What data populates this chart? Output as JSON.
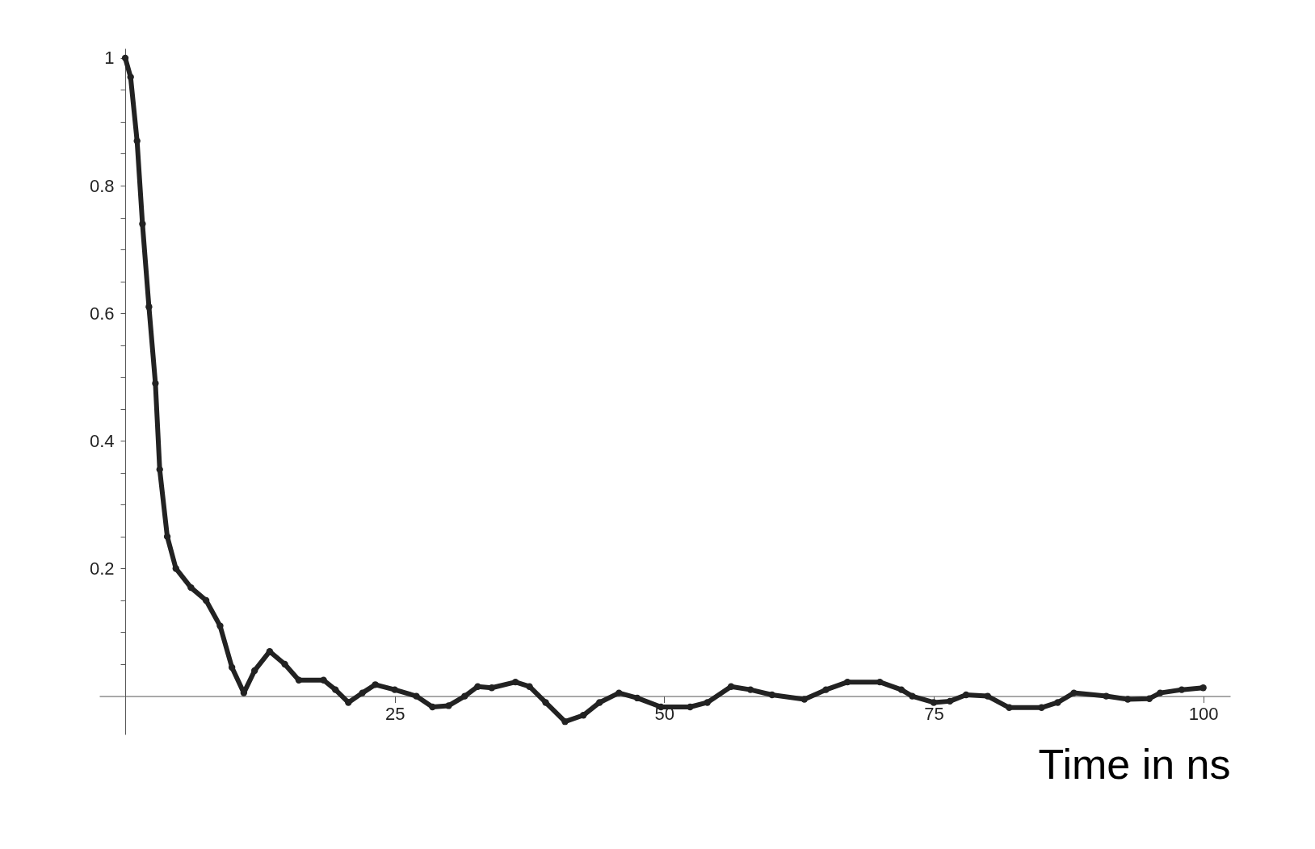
{
  "chart_data": {
    "type": "line",
    "marker": "circle",
    "xlabel": "Time in ns",
    "x": [
      0,
      0.5,
      1.1,
      1.6,
      2.2,
      2.8,
      3.2,
      3.9,
      4.7,
      6.1,
      7.5,
      8.8,
      9.9,
      11,
      12,
      13.4,
      14.8,
      16.1,
      18.4,
      19.5,
      20.7,
      22,
      23.2,
      25,
      27,
      28.5,
      30,
      31.5,
      32.7,
      34,
      36.2,
      37.5,
      39,
      40.8,
      42.5,
      44,
      45.8,
      47.5,
      49.7,
      52.4,
      54,
      56.2,
      58,
      60,
      63,
      65,
      67,
      70,
      72,
      73,
      75,
      76.5,
      78,
      80,
      82,
      85,
      86.5,
      88,
      91,
      93,
      95,
      96,
      98,
      100
    ],
    "series": [
      {
        "color": "#222222",
        "values": [
          1.0,
          0.97,
          0.87,
          0.74,
          0.61,
          0.49,
          0.355,
          0.25,
          0.2,
          0.17,
          0.15,
          0.11,
          0.045,
          0.005,
          0.04,
          0.07,
          0.05,
          0.025,
          0.025,
          0.01,
          -0.01,
          0.005,
          0.018,
          0.01,
          0.0,
          -0.017,
          -0.015,
          0.0,
          0.015,
          0.013,
          0.022,
          0.015,
          -0.01,
          -0.04,
          -0.03,
          -0.01,
          0.005,
          -0.003,
          -0.017,
          -0.017,
          -0.01,
          0.015,
          0.01,
          0.002,
          -0.005,
          0.01,
          0.022,
          0.022,
          0.01,
          0.0,
          -0.01,
          -0.008,
          0.002,
          0.0,
          -0.018,
          -0.018,
          -0.01,
          0.005,
          0.0,
          -0.005,
          -0.004,
          0.005,
          0.01,
          0.013
        ]
      }
    ],
    "xlim": [
      -2.4,
      102.5
    ],
    "ylim": [
      -0.06,
      1.015
    ],
    "xticks": [
      25,
      50,
      75,
      100
    ],
    "yticks": [
      {
        "value": 0.05,
        "label": null
      },
      {
        "value": 0.1,
        "label": null
      },
      {
        "value": 0.15,
        "label": null
      },
      0.2,
      {
        "value": 0.25,
        "label": null
      },
      {
        "value": 0.3,
        "label": null
      },
      {
        "value": 0.35,
        "label": null
      },
      0.4,
      {
        "value": 0.45,
        "label": null
      },
      {
        "value": 0.5,
        "label": null
      },
      {
        "value": 0.55,
        "label": null
      },
      0.6,
      {
        "value": 0.65,
        "label": null
      },
      {
        "value": 0.7,
        "label": null
      },
      {
        "value": 0.75,
        "label": null
      },
      0.8,
      {
        "value": 0.85,
        "label": null
      },
      {
        "value": 0.9,
        "label": null
      },
      {
        "value": 0.95,
        "label": null
      },
      {
        "value": 1,
        "label": "1"
      }
    ],
    "grid": false
  }
}
